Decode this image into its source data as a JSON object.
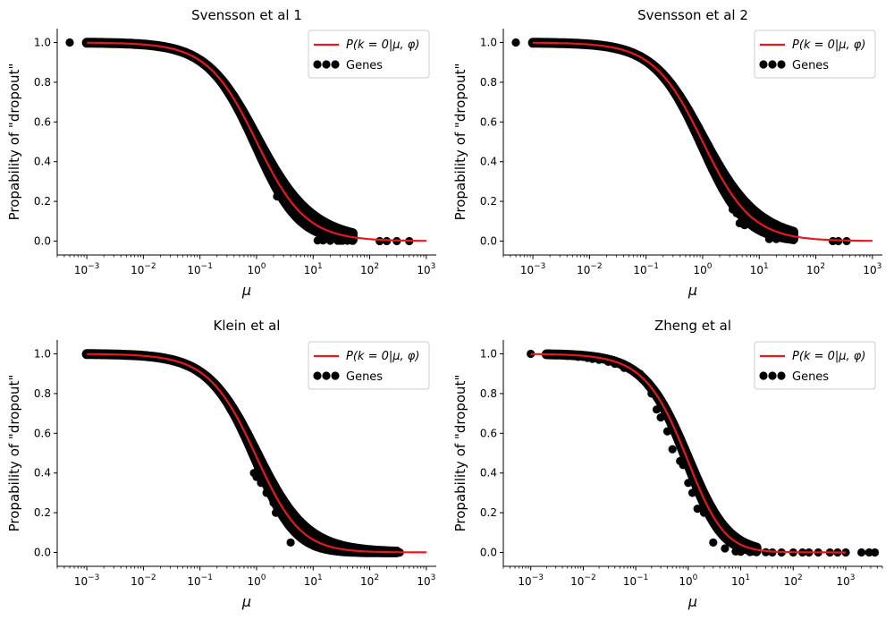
{
  "figure": {
    "xaxis_label": "μ",
    "yaxis_label": "Propability of \"dropout\"",
    "legend": {
      "curve_label": "P(k = 0|μ, φ)",
      "points_label": "Genes"
    },
    "colors": {
      "curve": "#e41a1c",
      "points": "#000000",
      "axis": "#000000",
      "legend_border": "#cccccc"
    }
  },
  "chart_data": [
    {
      "type": "scatter",
      "title": "Svensson et al 1",
      "xlabel": "μ",
      "ylabel": "Propability of \"dropout\"",
      "xscale": "log",
      "xlim": [
        0.0003,
        1500
      ],
      "ylim": [
        -0.07,
        1.07
      ],
      "xticks": [
        "10^-3",
        "10^-2",
        "10^-1",
        "10^0",
        "10^1",
        "10^2",
        "10^3"
      ],
      "yticks": [
        "0.0",
        "0.2",
        "0.4",
        "0.6",
        "0.8",
        "1.0"
      ],
      "legend_position": "top-right",
      "curve": {
        "name": "P(k = 0|μ, φ)",
        "phi": 1.0,
        "x_range": [
          0.001,
          1000
        ]
      },
      "band": {
        "x_range": [
          0.001,
          50
        ],
        "phi_low": 0.75,
        "phi_high": 1.3
      },
      "series": [
        {
          "name": "Genes",
          "x": [
            0.0005,
            0.001,
            0.0012,
            2.3,
            12,
            15,
            20,
            27,
            30,
            33,
            40,
            50,
            150,
            200,
            300,
            500
          ],
          "y": [
            1.0,
            1.0,
            1.0,
            0.225,
            0.003,
            0.003,
            0.002,
            0.002,
            0.002,
            0.002,
            0.002,
            0.001,
            0.0,
            0.0,
            0.0,
            0.0
          ]
        }
      ]
    },
    {
      "type": "scatter",
      "title": "Svensson et al 2",
      "xlabel": "μ",
      "ylabel": "Propability of \"dropout\"",
      "xscale": "log",
      "xlim": [
        0.0003,
        1500
      ],
      "ylim": [
        -0.07,
        1.07
      ],
      "xticks": [
        "10^-3",
        "10^-2",
        "10^-1",
        "10^0",
        "10^1",
        "10^2",
        "10^3"
      ],
      "yticks": [
        "0.0",
        "0.2",
        "0.4",
        "0.6",
        "0.8",
        "1.0"
      ],
      "legend_position": "top-right",
      "curve": {
        "name": "P(k = 0|μ, φ)",
        "phi": 1.0,
        "x_range": [
          0.001,
          1000
        ]
      },
      "band": {
        "x_range": [
          0.001,
          40
        ],
        "phi_low": 0.75,
        "phi_high": 1.3
      },
      "series": [
        {
          "name": "Genes",
          "x": [
            0.0005,
            0.001,
            1.8,
            2.0,
            2.4,
            3.0,
            3.4,
            4.0,
            4.5,
            5.5,
            12,
            15,
            20,
            30,
            40,
            200,
            250,
            350
          ],
          "y": [
            1.0,
            1.0,
            0.37,
            0.32,
            0.3,
            0.2,
            0.16,
            0.14,
            0.09,
            0.08,
            0.12,
            0.01,
            0.01,
            0.01,
            0.005,
            0.0,
            0.0,
            0.0
          ]
        }
      ]
    },
    {
      "type": "scatter",
      "title": "Klein et al",
      "xlabel": "μ",
      "ylabel": "Propability of \"dropout\"",
      "xscale": "log",
      "xlim": [
        0.0003,
        1500
      ],
      "ylim": [
        -0.07,
        1.07
      ],
      "xticks": [
        "10^-3",
        "10^-2",
        "10^-1",
        "10^0",
        "10^1",
        "10^2",
        "10^3"
      ],
      "yticks": [
        "0.0",
        "0.2",
        "0.4",
        "0.6",
        "0.8",
        "1.0"
      ],
      "legend_position": "top-right",
      "curve": {
        "name": "P(k = 0|μ, φ)",
        "phi": 0.8,
        "x_range": [
          0.001,
          1000
        ]
      },
      "band": {
        "x_range": [
          0.001,
          300
        ],
        "phi_low": 0.6,
        "phi_high": 1.05
      },
      "series": [
        {
          "name": "Genes",
          "x": [
            0.001,
            0.0015,
            0.002,
            0.003,
            0.7,
            0.8,
            0.9,
            1.0,
            1.2,
            1.5,
            2.0,
            2.2,
            4.0,
            100,
            200,
            340
          ],
          "y": [
            1.0,
            1.0,
            1.0,
            1.0,
            0.6,
            0.52,
            0.4,
            0.38,
            0.35,
            0.3,
            0.25,
            0.2,
            0.05,
            0.0,
            0.0,
            0.0
          ]
        }
      ]
    },
    {
      "type": "scatter",
      "title": "Zheng et al",
      "xlabel": "μ",
      "ylabel": "Propability of \"dropout\"",
      "xscale": "log",
      "xlim": [
        0.0003,
        5000
      ],
      "ylim": [
        -0.07,
        1.07
      ],
      "xticks": [
        "10^-3",
        "10^-2",
        "10^-1",
        "10^0",
        "10^1",
        "10^2",
        "10^3"
      ],
      "yticks": [
        "0.0",
        "0.2",
        "0.4",
        "0.6",
        "0.8",
        "1.0"
      ],
      "legend_position": "top-right",
      "curve": {
        "name": "P(k = 0|μ, φ)",
        "phi": 0.6,
        "x_range": [
          0.001,
          1000
        ]
      },
      "band": {
        "x_range": [
          0.002,
          20
        ],
        "phi_low": 0.48,
        "phi_high": 0.75
      },
      "series": [
        {
          "name": "Genes",
          "x": [
            0.001,
            0.003,
            0.004,
            0.005,
            0.006,
            0.008,
            0.01,
            0.012,
            0.015,
            0.02,
            0.03,
            0.04,
            0.06,
            0.08,
            0.12,
            0.2,
            0.25,
            0.3,
            0.4,
            0.5,
            0.7,
            0.8,
            1.0,
            1.2,
            1.5,
            2.0,
            2.5,
            3.0,
            5.0,
            8.0,
            10,
            15,
            20,
            30,
            40,
            60,
            100,
            150,
            200,
            300,
            500,
            700,
            1000,
            2000,
            2800,
            3600
          ],
          "y": [
            1.0,
            0.995,
            0.995,
            0.99,
            0.99,
            0.985,
            0.985,
            0.98,
            0.975,
            0.97,
            0.96,
            0.95,
            0.93,
            0.92,
            0.9,
            0.8,
            0.72,
            0.68,
            0.61,
            0.52,
            0.46,
            0.44,
            0.35,
            0.3,
            0.22,
            0.2,
            0.2,
            0.05,
            0.02,
            0.005,
            0.003,
            0.002,
            0.001,
            0.001,
            0.0,
            0.0,
            0.0,
            0.0,
            0.0,
            0.0,
            0.0,
            0.0,
            0.0,
            0.0,
            0.0,
            0.0
          ]
        }
      ]
    }
  ]
}
